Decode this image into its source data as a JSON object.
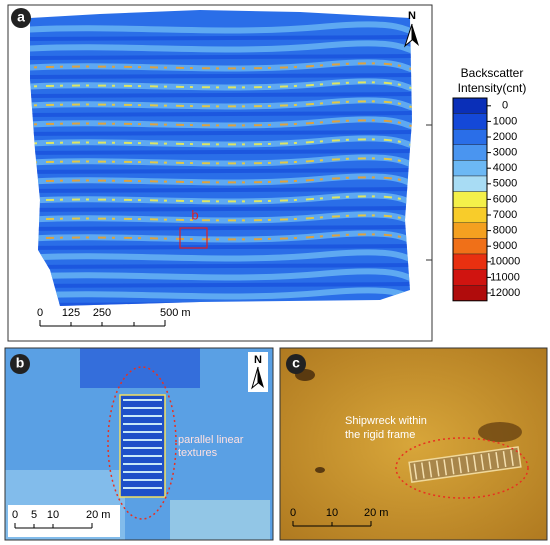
{
  "panel_a": {
    "label": "a",
    "north": "N",
    "inset_label": "b",
    "scale_bar": [
      "0",
      "125",
      "250",
      "500 m"
    ]
  },
  "panel_b": {
    "label": "b",
    "north": "N",
    "annotation": [
      "parallel linear",
      "textures"
    ],
    "scale_bar": [
      "0",
      "5",
      "10",
      "20 m"
    ]
  },
  "panel_c": {
    "label": "c",
    "annotation": [
      "Shipwreck within",
      "the rigid frame"
    ],
    "scale_bar": [
      "0",
      "10",
      "20 m"
    ]
  },
  "legend": {
    "title": [
      "Backscatter",
      "Intensity(cnt)"
    ],
    "entries": [
      {
        "value": 0,
        "color": "#0a2fb8"
      },
      {
        "value": 1000,
        "color": "#1448d8"
      },
      {
        "value": 2000,
        "color": "#2a6ee8"
      },
      {
        "value": 3000,
        "color": "#4a95f0"
      },
      {
        "value": 4000,
        "color": "#6cb8f4"
      },
      {
        "value": 5000,
        "color": "#a8dcf4"
      },
      {
        "value": 6000,
        "color": "#f4f04a"
      },
      {
        "value": 7000,
        "color": "#f8cc2a"
      },
      {
        "value": 8000,
        "color": "#f4a020"
      },
      {
        "value": 9000,
        "color": "#f07018"
      },
      {
        "value": 10000,
        "color": "#e83010"
      },
      {
        "value": 11000,
        "color": "#d01410"
      },
      {
        "value": 12000,
        "color": "#b00c0c"
      }
    ]
  }
}
